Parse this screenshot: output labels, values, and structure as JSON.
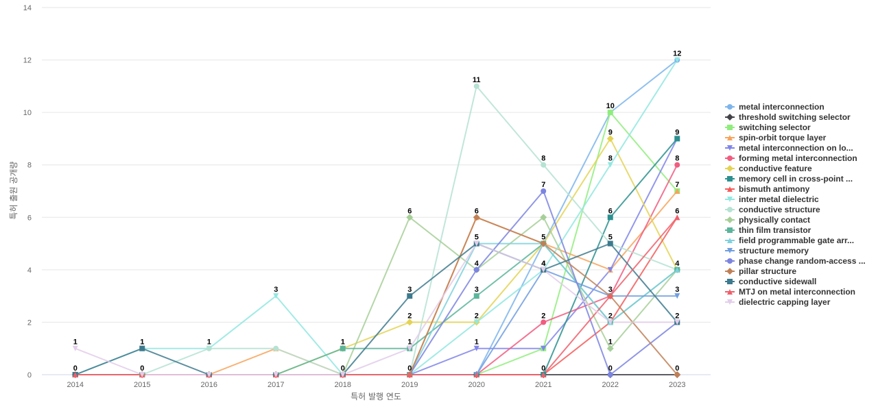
{
  "chart_data": {
    "type": "line",
    "title": "",
    "xlabel": "특허 발행 연도",
    "ylabel": "특허 출원 공개량",
    "x": [
      "2014",
      "2015",
      "2016",
      "2017",
      "2018",
      "2019",
      "2020",
      "2021",
      "2022",
      "2023"
    ],
    "ylim": [
      0,
      14
    ],
    "yticks": [
      0,
      2,
      4,
      6,
      8,
      10,
      12,
      14
    ],
    "legend_position": "right",
    "series": [
      {
        "name": "metal interconnection",
        "color": "#7cb5ec",
        "marker": "circle",
        "values": [
          0,
          0,
          0,
          0,
          0,
          0,
          0,
          5,
          10,
          12
        ],
        "labels": [
          false,
          false,
          false,
          false,
          false,
          false,
          false,
          false,
          true,
          true
        ]
      },
      {
        "name": "threshold switching selector",
        "color": "#434348",
        "marker": "diamond",
        "values": [
          0,
          0,
          0,
          0,
          0,
          0,
          0,
          0,
          0,
          0
        ],
        "labels": [
          false,
          false,
          false,
          false,
          false,
          false,
          false,
          false,
          false,
          false
        ]
      },
      {
        "name": "switching selector",
        "color": "#90ed7d",
        "marker": "square",
        "values": [
          0,
          0,
          0,
          0,
          0,
          0,
          0,
          1,
          10,
          7
        ],
        "labels": [
          false,
          false,
          false,
          false,
          false,
          false,
          false,
          false,
          false,
          false
        ]
      },
      {
        "name": "spin-orbit torque layer",
        "color": "#f7a35c",
        "marker": "triangle",
        "values": [
          0,
          0,
          0,
          1,
          0,
          0,
          6,
          5,
          4,
          7
        ],
        "labels": [
          false,
          false,
          false,
          false,
          false,
          false,
          false,
          false,
          false,
          true
        ]
      },
      {
        "name": "metal interconnection on lo...",
        "color": "#8085e9",
        "marker": "triangle-down",
        "values": [
          0,
          0,
          0,
          0,
          0,
          0,
          1,
          1,
          4,
          9
        ],
        "labels": [
          false,
          false,
          false,
          false,
          false,
          false,
          true,
          false,
          false,
          false
        ]
      },
      {
        "name": "forming metal interconnection",
        "color": "#f15c80",
        "marker": "circle",
        "values": [
          0,
          0,
          0,
          0,
          0,
          0,
          0,
          2,
          3,
          8
        ],
        "labels": [
          false,
          false,
          false,
          false,
          false,
          false,
          false,
          true,
          false,
          true
        ]
      },
      {
        "name": "conductive feature",
        "color": "#e4d354",
        "marker": "diamond",
        "values": [
          0,
          0,
          0,
          0,
          1,
          2,
          2,
          5,
          9,
          4
        ],
        "labels": [
          false,
          false,
          false,
          false,
          false,
          true,
          true,
          false,
          true,
          true
        ]
      },
      {
        "name": "memory cell in cross-point ...",
        "color": "#2b908f",
        "marker": "square",
        "values": [
          0,
          0,
          0,
          0,
          0,
          0,
          0,
          0,
          6,
          9
        ],
        "labels": [
          false,
          false,
          false,
          false,
          false,
          false,
          false,
          true,
          true,
          true
        ]
      },
      {
        "name": "bismuth antimony",
        "color": "#f45b5b",
        "marker": "triangle",
        "values": [
          0,
          0,
          0,
          0,
          0,
          0,
          0,
          0,
          2,
          6
        ],
        "labels": [
          false,
          false,
          false,
          false,
          false,
          false,
          false,
          false,
          true,
          true
        ]
      },
      {
        "name": "inter metal dielectric",
        "color": "#91e8e1",
        "marker": "triangle-down",
        "values": [
          0,
          1,
          1,
          3,
          0,
          0,
          2,
          4,
          8,
          12
        ],
        "labels": [
          false,
          false,
          true,
          true,
          false,
          false,
          false,
          true,
          true,
          false
        ]
      },
      {
        "name": "conductive structure",
        "color": "#b5e2d3",
        "marker": "circle",
        "values": [
          0,
          0,
          1,
          1,
          0,
          0,
          11,
          8,
          5,
          4
        ],
        "labels": [
          false,
          false,
          false,
          false,
          false,
          false,
          true,
          true,
          false,
          false
        ]
      },
      {
        "name": "physically contact",
        "color": "#a6cf98",
        "marker": "diamond",
        "values": [
          0,
          0,
          0,
          0,
          0,
          6,
          4,
          6,
          1,
          4
        ],
        "labels": [
          false,
          false,
          false,
          false,
          false,
          true,
          false,
          false,
          true,
          false
        ]
      },
      {
        "name": "thin film transistor",
        "color": "#5bb59a",
        "marker": "square",
        "values": [
          0,
          0,
          0,
          0,
          1,
          1,
          3,
          5,
          2,
          4
        ],
        "labels": [
          false,
          false,
          false,
          false,
          true,
          true,
          true,
          true,
          false,
          false
        ]
      },
      {
        "name": "field programmable gate arr...",
        "color": "#7fd1dd",
        "marker": "triangle",
        "values": [
          0,
          0,
          0,
          0,
          0,
          0,
          5,
          5,
          2,
          4
        ],
        "labels": [
          false,
          false,
          false,
          false,
          false,
          false,
          false,
          false,
          false,
          false
        ]
      },
      {
        "name": "structure memory",
        "color": "#6f9ee0",
        "marker": "triangle-down",
        "values": [
          0,
          0,
          0,
          0,
          0,
          0,
          0,
          4,
          3,
          3
        ],
        "labels": [
          false,
          false,
          false,
          false,
          false,
          false,
          false,
          false,
          false,
          true
        ]
      },
      {
        "name": "phase change random-access ...",
        "color": "#7b84e0",
        "marker": "circle",
        "values": [
          0,
          0,
          0,
          0,
          0,
          0,
          4,
          7,
          0,
          2
        ],
        "labels": [
          false,
          false,
          false,
          false,
          false,
          false,
          true,
          true,
          true,
          false
        ]
      },
      {
        "name": "pillar structure",
        "color": "#c08056",
        "marker": "diamond",
        "values": [
          0,
          0,
          0,
          0,
          0,
          0,
          6,
          5,
          3,
          0
        ],
        "labels": [
          false,
          false,
          false,
          false,
          false,
          false,
          true,
          false,
          true,
          true
        ]
      },
      {
        "name": "conductive sidewall",
        "color": "#3e7a8e",
        "marker": "square",
        "values": [
          0,
          1,
          0,
          0,
          0,
          3,
          5,
          4,
          5,
          2
        ],
        "labels": [
          true,
          true,
          false,
          false,
          false,
          true,
          true,
          true,
          true,
          true
        ]
      },
      {
        "name": "MTJ on metal interconnection",
        "color": "#ef5f6b",
        "marker": "triangle",
        "values": [
          0,
          0,
          0,
          0,
          0,
          0,
          0,
          0,
          3,
          6
        ],
        "labels": [
          false,
          false,
          false,
          false,
          true,
          true,
          false,
          false,
          false,
          false
        ]
      },
      {
        "name": "dielectric capping layer",
        "color": "#e2cdea",
        "marker": "triangle-down",
        "values": [
          1,
          0,
          0,
          0,
          0,
          1,
          5,
          4,
          2,
          2
        ],
        "labels": [
          true,
          true,
          false,
          false,
          false,
          false,
          false,
          false,
          false,
          false
        ]
      }
    ]
  }
}
